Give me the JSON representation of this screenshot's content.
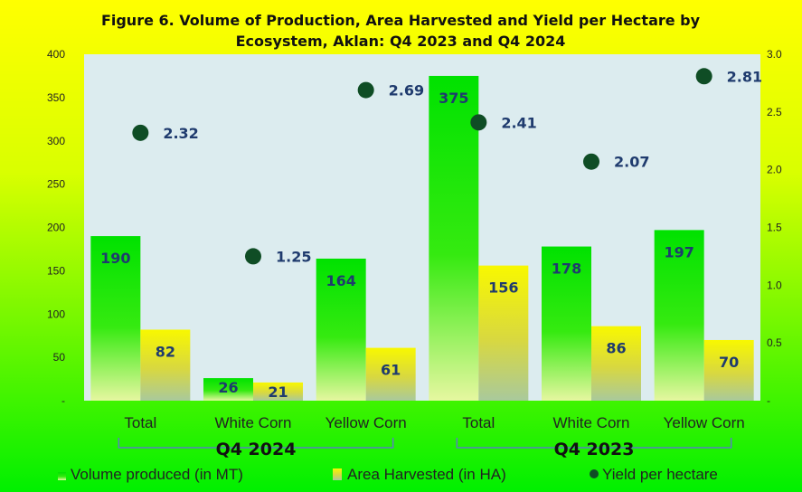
{
  "chart_data": {
    "type": "bar",
    "title_line1": "Figure 6. Volume of Production, Area Harvested and Yield per Hectare by",
    "title_line2": "Ecosystem, Aklan: Q4 2023 and Q4 2024",
    "categories": [
      "Total",
      "White Corn",
      "Yellow Corn",
      "Total",
      "White Corn",
      "Yellow Corn"
    ],
    "groups": [
      {
        "label": "Q4 2024",
        "categories": [
          0,
          1,
          2
        ]
      },
      {
        "label": "Q4 2023",
        "categories": [
          3,
          4,
          5
        ]
      }
    ],
    "series": [
      {
        "name": "Volume produced (in MT)",
        "axis": "left",
        "kind": "bar",
        "values": [
          190,
          26,
          164,
          375,
          178,
          197
        ],
        "labels": [
          "190",
          "26",
          "164",
          "375",
          "178",
          "197"
        ],
        "color": "#00e400"
      },
      {
        "name": "Area Harvested (in HA)",
        "axis": "left",
        "kind": "bar",
        "values": [
          82,
          21,
          61,
          156,
          86,
          70
        ],
        "labels": [
          "82",
          "21",
          "61",
          "156",
          "86",
          "70"
        ],
        "color": "#f2f200"
      },
      {
        "name": "Yield per hectare",
        "axis": "right",
        "kind": "scatter",
        "values": [
          2.32,
          1.25,
          2.69,
          2.41,
          2.07,
          2.81
        ],
        "labels": [
          "2.32",
          "1.25",
          "2.69",
          "2.41",
          "2.07",
          "2.81"
        ],
        "color": "#0f4d25"
      }
    ],
    "y_left": {
      "range": [
        0,
        400
      ],
      "ticks": [
        "-",
        "50",
        "100",
        "150",
        "200",
        "250",
        "300",
        "350",
        "400"
      ]
    },
    "y_right": {
      "range": [
        0,
        3.0
      ],
      "ticks": [
        "-",
        "0.5",
        "1.0",
        "1.5",
        "2.0",
        "2.5",
        "3.0"
      ]
    },
    "legend_position": "bottom",
    "plot_background": "#dcecef",
    "grid": false
  }
}
